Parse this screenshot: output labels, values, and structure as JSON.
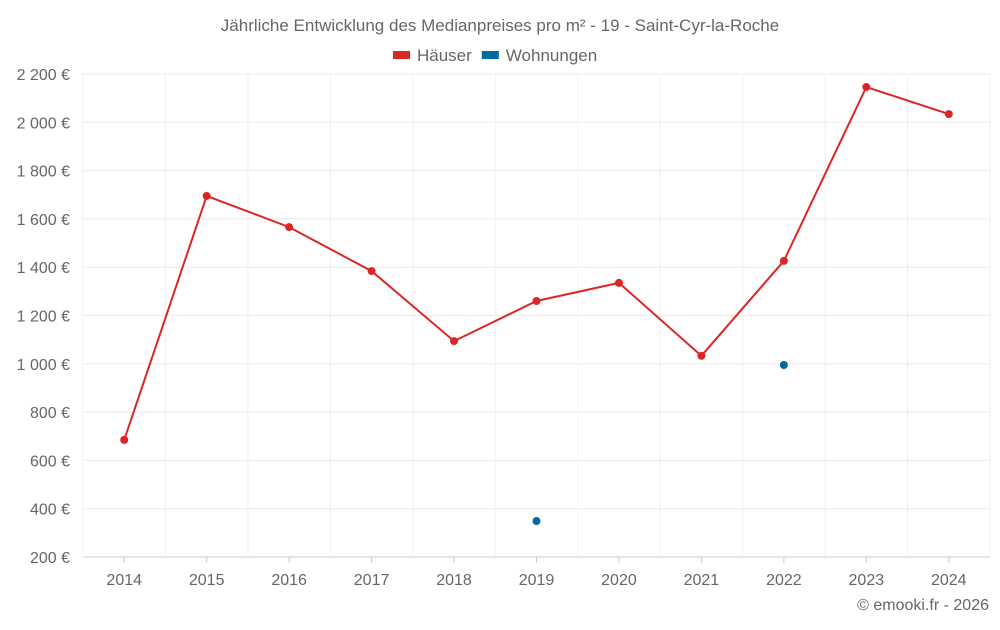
{
  "chart_data": {
    "type": "line",
    "title": "Jährliche Entwicklung des Medianpreises pro m² - 19 - Saint-Cyr-la-Roche",
    "categories": [
      "2014",
      "2015",
      "2016",
      "2017",
      "2018",
      "2019",
      "2020",
      "2021",
      "2022",
      "2023",
      "2024"
    ],
    "series": [
      {
        "name": "Häuser",
        "color": "#dc2626",
        "values": [
          685,
          1695,
          1566,
          1384,
          1094,
          1260,
          1335,
          1033,
          1426,
          2146,
          2034
        ]
      },
      {
        "name": "Wohnungen",
        "color": "#0369a1",
        "values": [
          null,
          null,
          null,
          null,
          null,
          349,
          null,
          null,
          995,
          null,
          null
        ]
      }
    ],
    "yticks": [
      "200 €",
      "400 €",
      "600 €",
      "800 €",
      "1 000 €",
      "1 200 €",
      "1 400 €",
      "1 600 €",
      "1 800 €",
      "2 000 €",
      "2 200 €"
    ],
    "ylim": [
      200,
      2200
    ],
    "grid": true,
    "legend": "top-center",
    "xlabel": "",
    "ylabel": ""
  },
  "credit": "© emooki.fr - 2026"
}
